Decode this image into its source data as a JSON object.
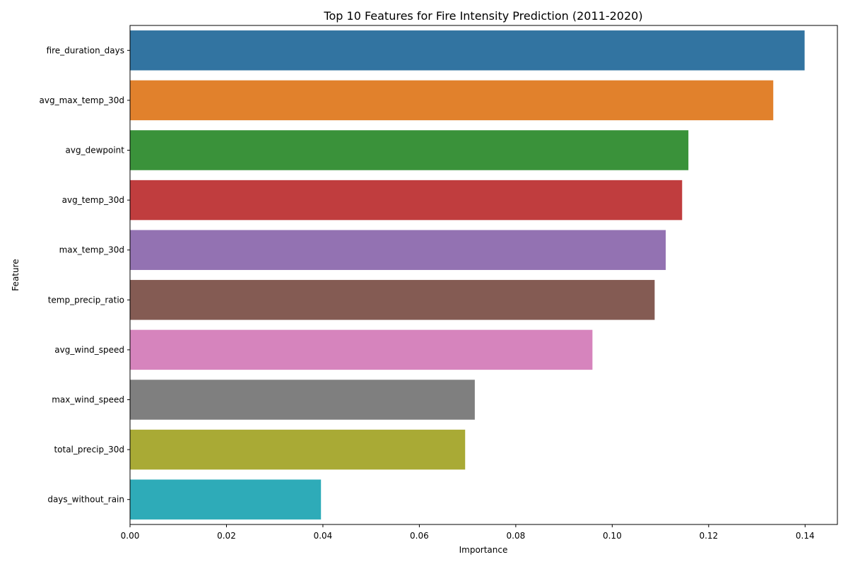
{
  "chart_data": {
    "type": "bar",
    "orientation": "horizontal",
    "title": "Top 10 Features for Fire Intensity Prediction (2011-2020)",
    "xlabel": "Importance",
    "ylabel": "Feature",
    "xlim": [
      0,
      0.1467
    ],
    "xticks": [
      0.0,
      0.02,
      0.04,
      0.06,
      0.08,
      0.1,
      0.12,
      0.14
    ],
    "xtick_labels": [
      "0.00",
      "0.02",
      "0.04",
      "0.06",
      "0.08",
      "0.10",
      "0.12",
      "0.14"
    ],
    "grid": false,
    "legend": false,
    "categories": [
      "fire_duration_days",
      "avg_max_temp_30d",
      "avg_dewpoint",
      "avg_temp_30d",
      "max_temp_30d",
      "temp_precip_ratio",
      "avg_wind_speed",
      "max_wind_speed",
      "total_precip_30d",
      "days_without_rain"
    ],
    "values": [
      0.1399,
      0.1334,
      0.1158,
      0.1145,
      0.1111,
      0.1088,
      0.0959,
      0.0715,
      0.0695,
      0.0396
    ],
    "colors": [
      "#3274a1",
      "#e1812c",
      "#3a923a",
      "#c03d3e",
      "#9372b2",
      "#845b53",
      "#d684bd",
      "#7f7f7f",
      "#a9aa35",
      "#2eabb8"
    ]
  }
}
